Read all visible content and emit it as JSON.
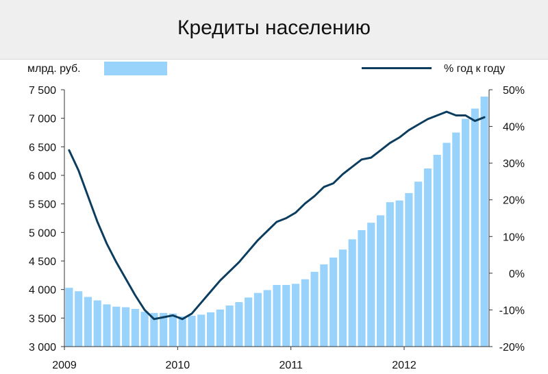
{
  "header": {
    "title": "Кредиты населению"
  },
  "legend": {
    "bar_label": "млрд. руб.",
    "line_label": "% год к году"
  },
  "colors": {
    "bars": "#99d3fb",
    "line": "#0c3d5e",
    "axis": "#333333"
  },
  "chart_data": {
    "type": "bar",
    "title": "Кредиты населению",
    "x_tick_labels": [
      "2009",
      "2010",
      "2011",
      "2012"
    ],
    "left_axis": {
      "unit": "млрд. руб.",
      "range": [
        3000,
        7500
      ],
      "ticks": [
        "3 000",
        "3 500",
        "4 000",
        "4 500",
        "5 000",
        "5 500",
        "6 000",
        "6 500",
        "7 000",
        "7 500"
      ]
    },
    "right_axis": {
      "unit": "% год к году",
      "range": [
        -20,
        50
      ],
      "ticks": [
        "-20%",
        "-10%",
        "0%",
        "10%",
        "20%",
        "30%",
        "40%",
        "50%"
      ]
    },
    "grid": false,
    "series": [
      {
        "name": "млрд. руб.",
        "type": "bar",
        "axis": "left",
        "values": [
          4030,
          3970,
          3870,
          3810,
          3740,
          3700,
          3690,
          3660,
          3610,
          3590,
          3590,
          3580,
          3530,
          3540,
          3560,
          3600,
          3650,
          3720,
          3780,
          3860,
          3940,
          3990,
          4080,
          4080,
          4100,
          4180,
          4310,
          4440,
          4560,
          4700,
          4880,
          5040,
          5170,
          5300,
          5530,
          5560,
          5690,
          5890,
          6120,
          6360,
          6570,
          6750,
          6990,
          7170,
          7380
        ]
      },
      {
        "name": "% год к году",
        "type": "line",
        "axis": "right",
        "values": [
          33.5,
          28,
          21,
          14,
          8,
          3,
          -1.5,
          -6,
          -10,
          -12.5,
          -12,
          -11.5,
          -12.5,
          -11,
          -8,
          -5,
          -2,
          0.5,
          3,
          6,
          9,
          11.5,
          14,
          15,
          16.5,
          19,
          21,
          23.5,
          24.5,
          27,
          29,
          31,
          31.5,
          33.5,
          35.5,
          37,
          39,
          40.5,
          42,
          43,
          44,
          43,
          43,
          41.5,
          42.5
        ]
      }
    ]
  }
}
